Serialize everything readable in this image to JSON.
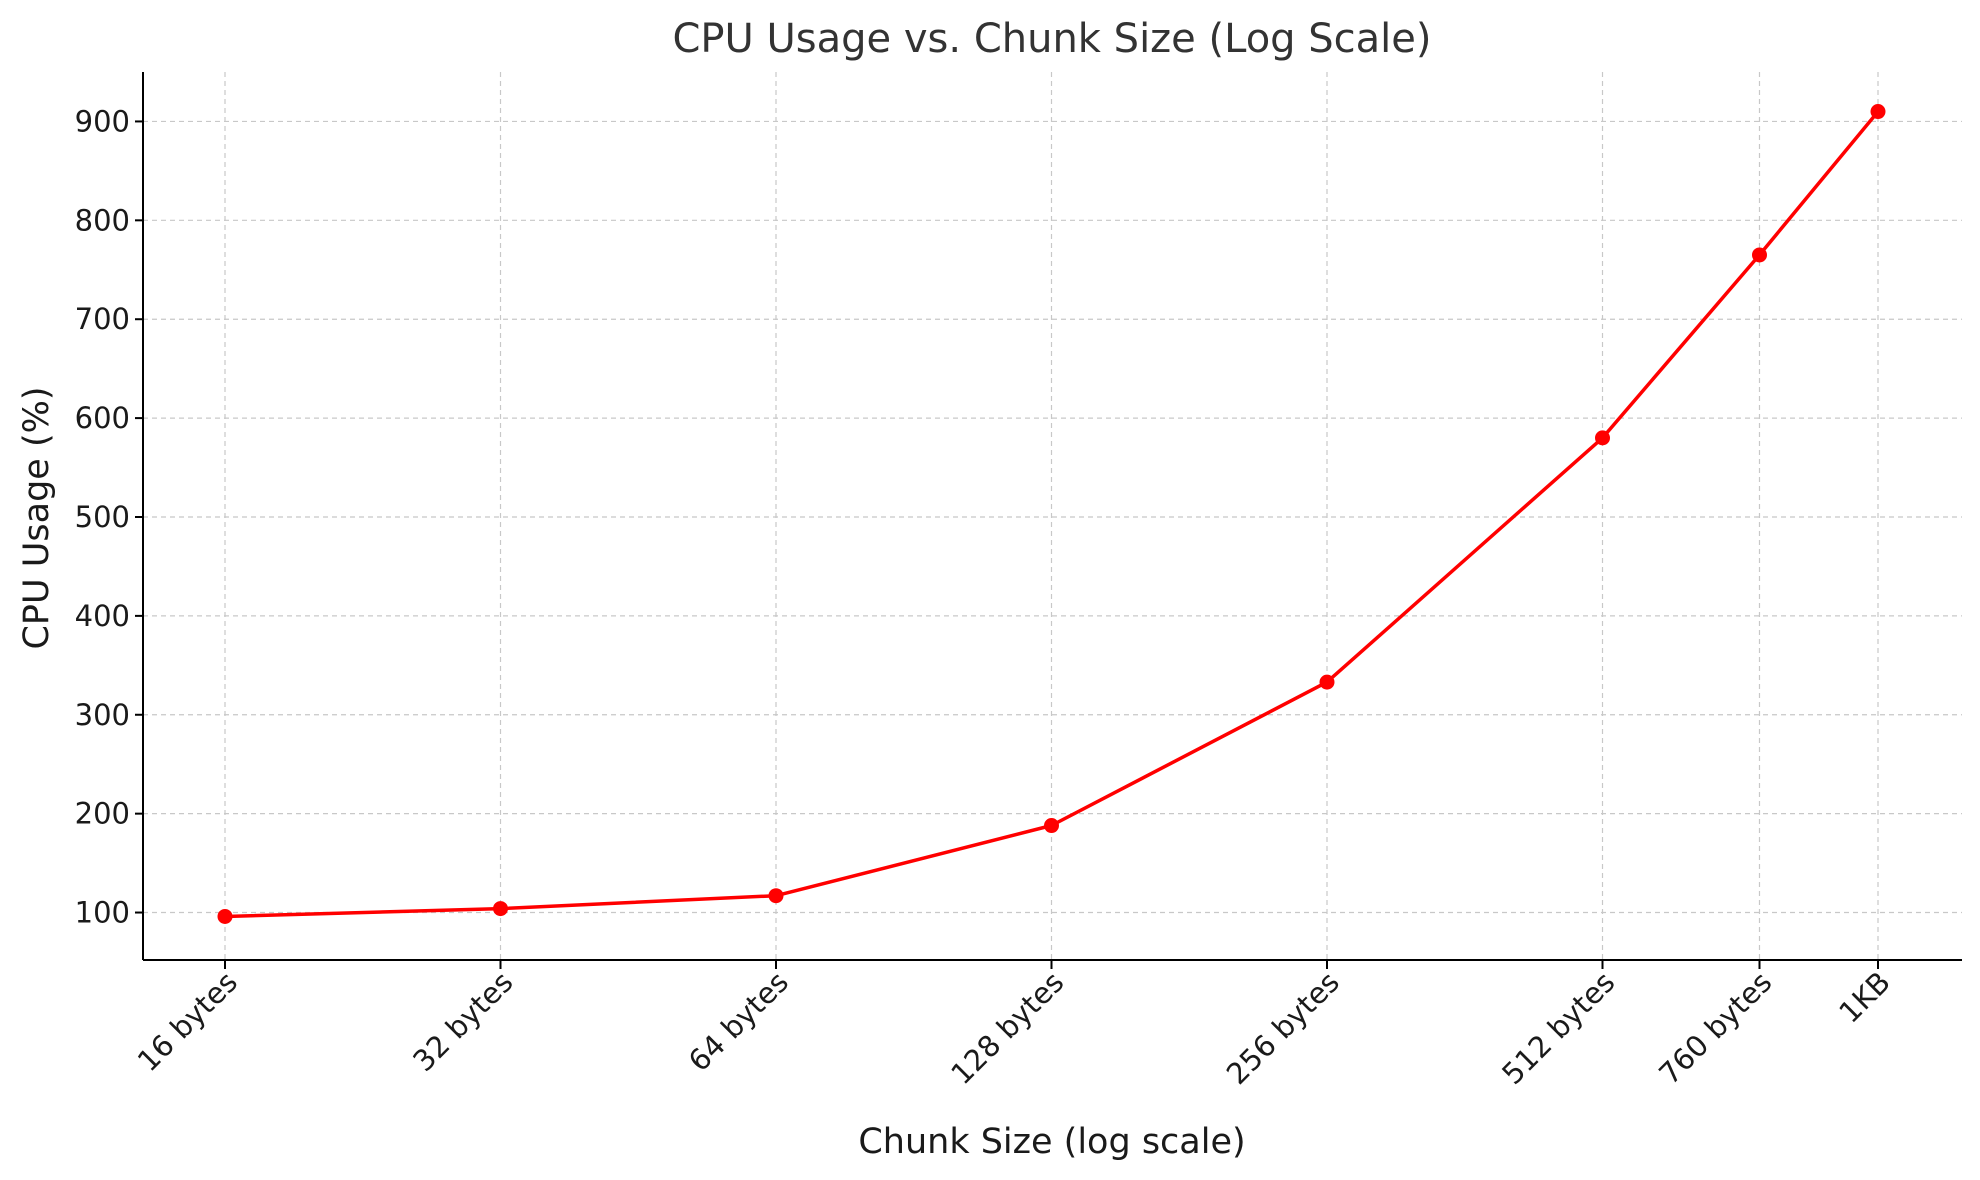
{
  "chart_data": {
    "type": "line",
    "title": "CPU Usage vs. Chunk Size (Log Scale)",
    "xlabel": "Chunk Size (log scale)",
    "ylabel": "CPU Usage (%)",
    "x_scale": "log",
    "x": [
      16,
      32,
      64,
      128,
      256,
      512,
      760,
      1024
    ],
    "x_tick_labels": [
      "16 bytes",
      "32 bytes",
      "64 bytes",
      "128 bytes",
      "256 bytes",
      "512 bytes",
      "760 bytes",
      "1KB"
    ],
    "y_ticks": [
      100,
      200,
      300,
      400,
      500,
      600,
      700,
      800,
      900
    ],
    "ylim": [
      52,
      950
    ],
    "grid": true,
    "series": [
      {
        "values": [
          96,
          104,
          117,
          188,
          333,
          580,
          765,
          910
        ],
        "color": "#ff0000",
        "marker": "circle"
      }
    ]
  }
}
